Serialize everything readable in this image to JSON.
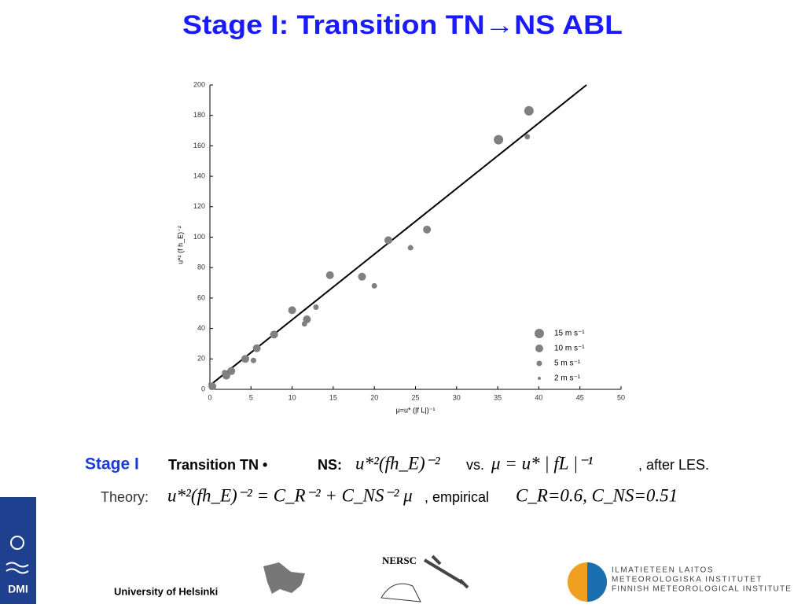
{
  "slide": {
    "title": "Stage I: Transition TN→NS ABL",
    "caption_1": [
      "Stage I",
      "Transition TN •",
      "NS:",
      "u*²(fh_E)⁻²",
      "vs.",
      "μ = u* | fL |⁻¹",
      ", after LES."
    ],
    "caption_2": [
      "Theory:",
      "u*²(fh_E)⁻² = C_R⁻² + C_NS⁻² μ",
      ", empirical",
      "C_R=0.6, C_NS=0.51"
    ],
    "footer": {
      "university": "University of Helsinki",
      "nersc": "NERSC",
      "dmi": "DMI",
      "fmi": [
        "ILMATIETEEN LAITOS",
        "METEOROLOGISKA INSTITUTET",
        "FINNISH METEOROLOGICAL INSTITUTE"
      ]
    }
  },
  "chart_data": {
    "type": "scatter",
    "x_label": "μ=u* (|f L|)⁻¹",
    "y_label": "u*² (f h_E)⁻²",
    "xlim": [
      0,
      50
    ],
    "ylim": [
      0,
      200
    ],
    "xticks": [
      0,
      5,
      10,
      15,
      20,
      25,
      30,
      35,
      40,
      45,
      50
    ],
    "yticks": [
      0,
      20,
      40,
      60,
      80,
      100,
      120,
      140,
      160,
      180,
      200
    ],
    "series": [
      {
        "name": "15 m s⁻¹",
        "color": "#808080",
        "x": [
          38.8,
          35.1
        ],
        "values": [
          183,
          164
        ]
      },
      {
        "name": "10 m s⁻¹",
        "color": "#808080",
        "x": [
          0.3,
          2,
          2.6,
          4.3,
          5.7,
          7.8,
          10,
          11.8,
          14.6,
          18.5,
          21.7,
          26.4
        ],
        "values": [
          2,
          9,
          12,
          20,
          27,
          36,
          52,
          46,
          75,
          74,
          98,
          105
        ]
      },
      {
        "name": "5 m s⁻¹",
        "color": "#808080",
        "x": [
          1.8,
          5.3,
          11.5,
          12.9,
          20,
          24.4,
          38.6
        ],
        "values": [
          11,
          19,
          43,
          54,
          68,
          93,
          166
        ]
      },
      {
        "name": "2 m s⁻¹",
        "color": "#808080",
        "x": [
          0
        ],
        "values": [
          3.5
        ]
      }
    ],
    "fit_line": {
      "color": "#000000",
      "x": [
        0,
        45.8
      ],
      "values": [
        2.6,
        200
      ]
    }
  }
}
